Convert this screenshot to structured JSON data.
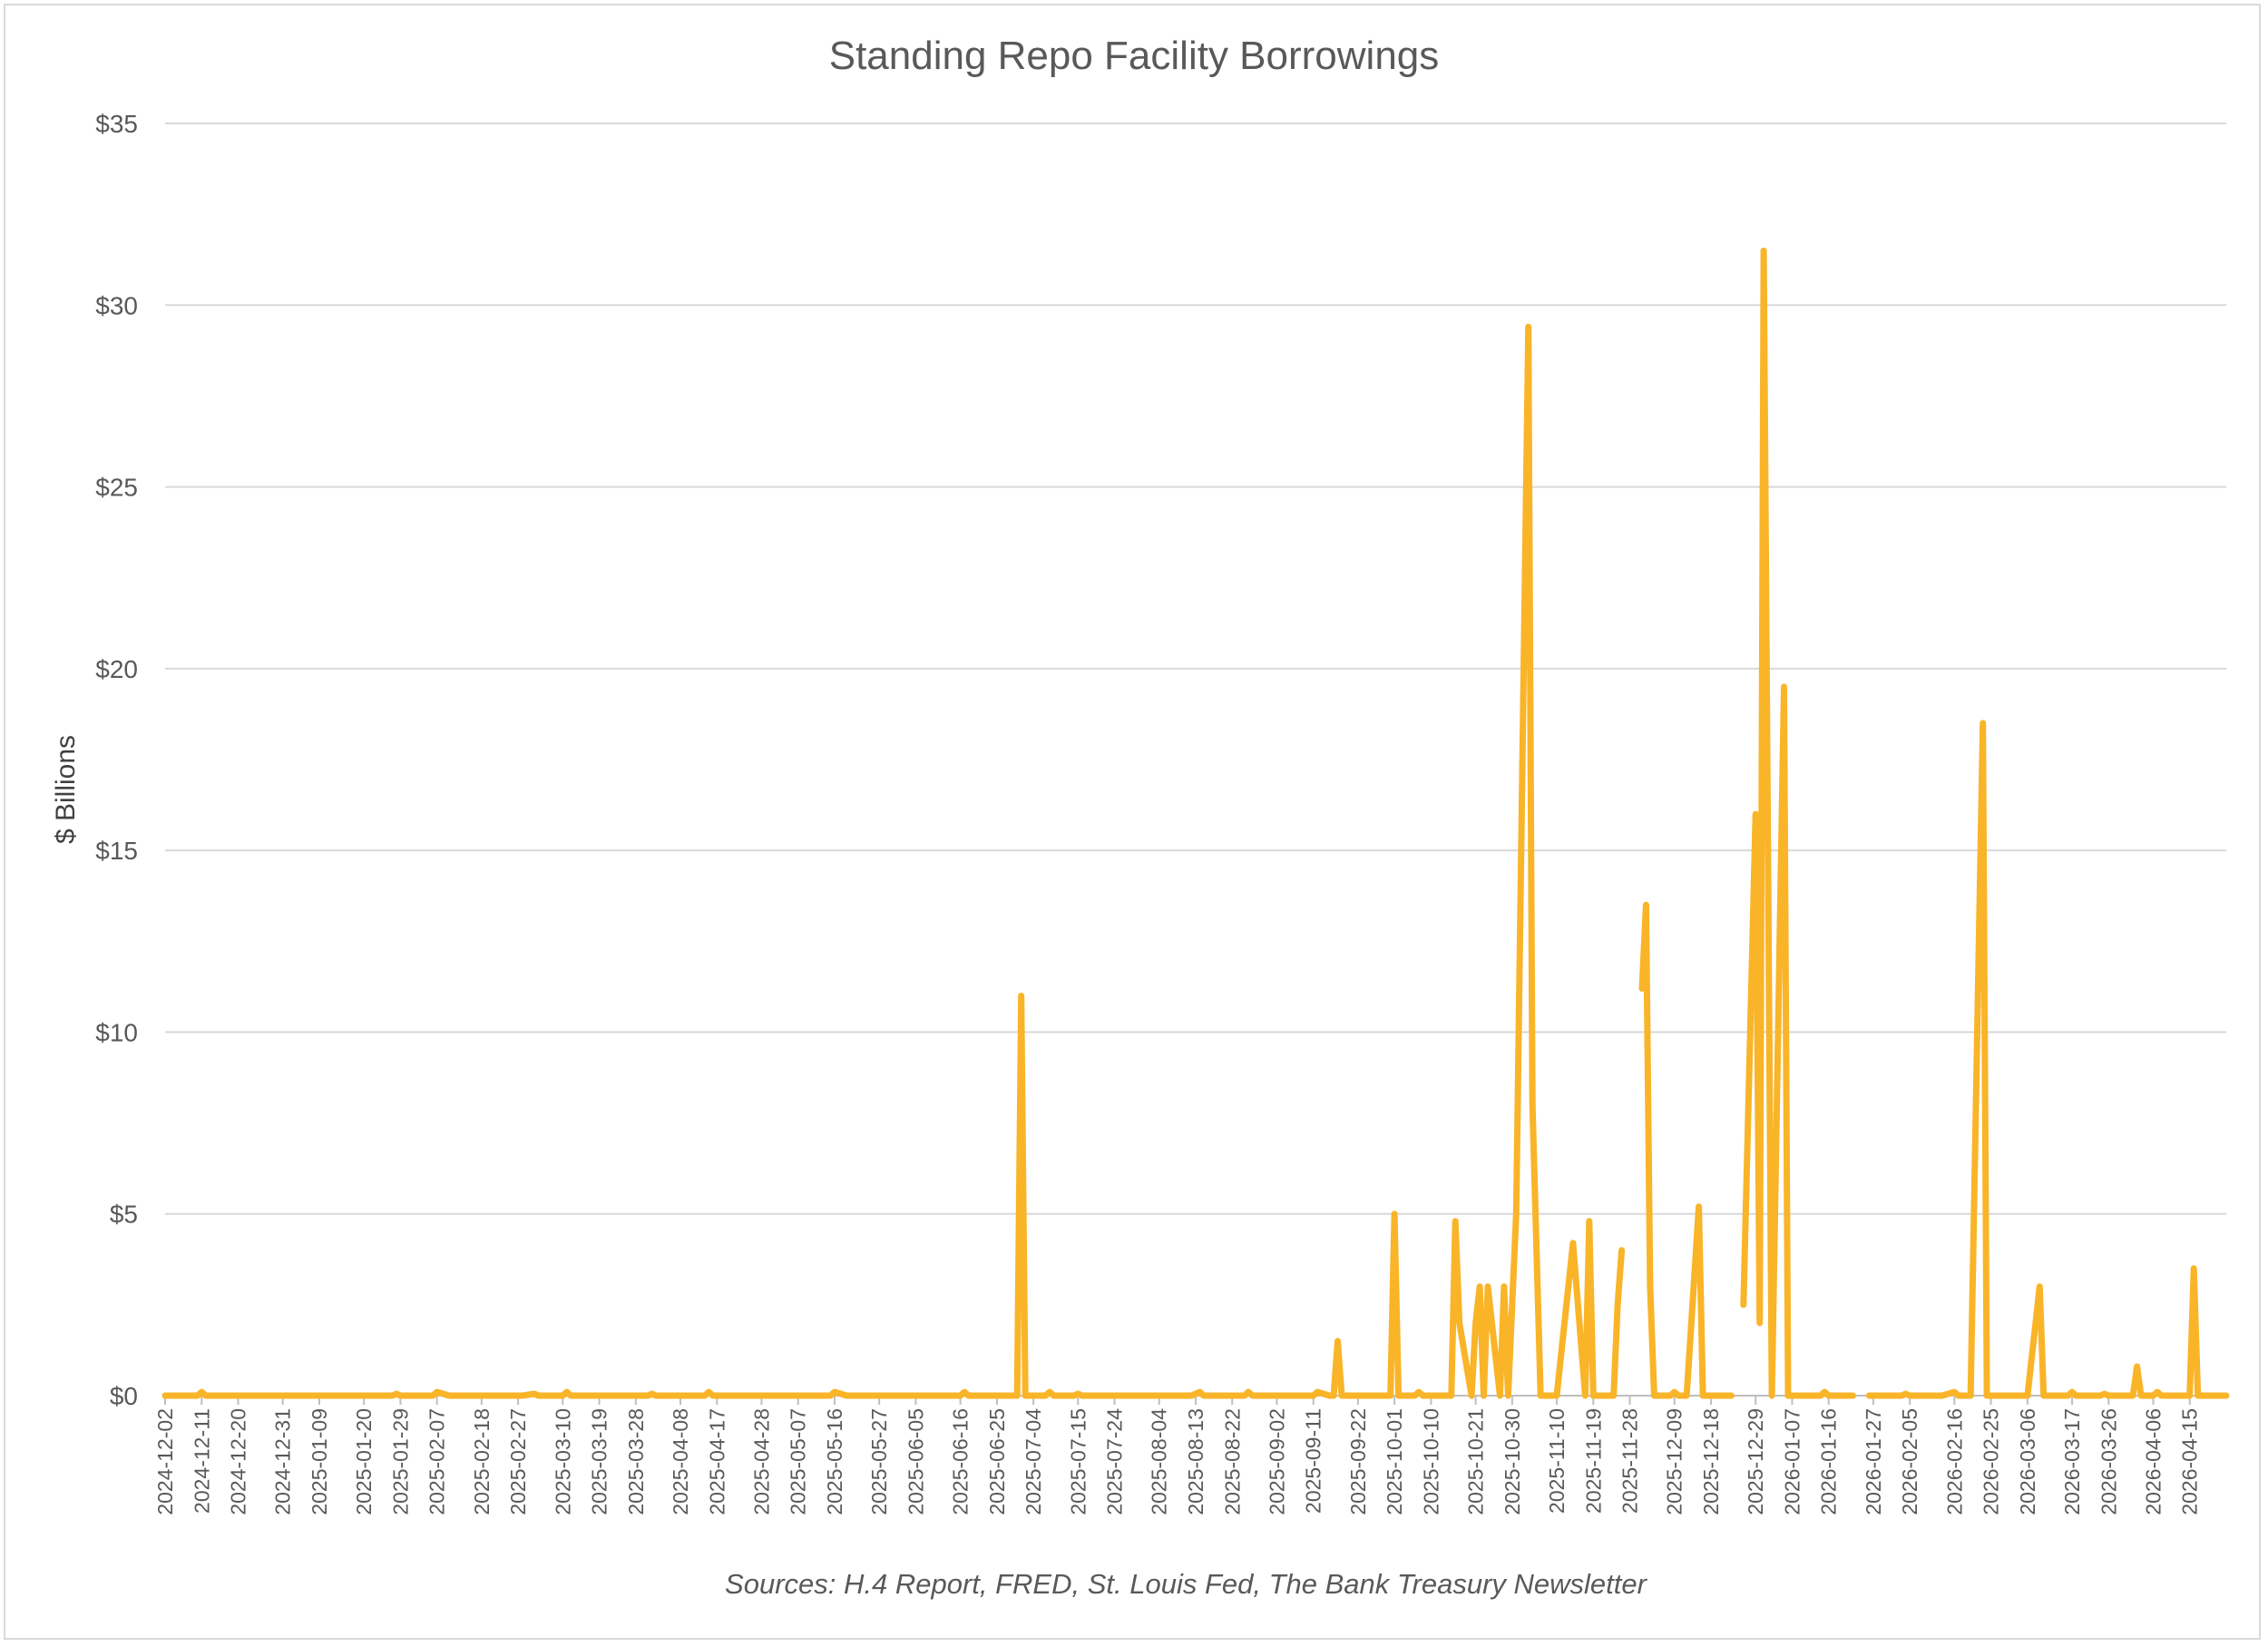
{
  "chart_data": {
    "type": "line",
    "title": "Standing Repo Facility Borrowings",
    "ylabel": "$ Billions",
    "xlabel": "",
    "source": "Sources: H.4 Report, FRED, St. Louis Fed, The Bank Treasury Newsletter",
    "ylim": [
      0,
      35
    ],
    "xlim": [
      "2024-12-02",
      "2026-04-24"
    ],
    "yticks": [
      0,
      5,
      10,
      15,
      20,
      25,
      30,
      35
    ],
    "ytick_labels": [
      "$0",
      "$5",
      "$10",
      "$15",
      "$20",
      "$25",
      "$30",
      "$35"
    ],
    "xtick_labels": [
      "2024-12-02",
      "2024-12-11",
      "2024-12-20",
      "2024-12-31",
      "2025-01-09",
      "2025-01-20",
      "2025-01-29",
      "2025-02-07",
      "2025-02-18",
      "2025-02-27",
      "2025-03-10",
      "2025-03-19",
      "2025-03-28",
      "2025-04-08",
      "2025-04-17",
      "2025-04-28",
      "2025-05-07",
      "2025-05-16",
      "2025-05-27",
      "2025-06-05",
      "2025-06-16",
      "2025-06-25",
      "2025-07-04",
      "2025-07-15",
      "2025-07-24",
      "2025-08-04",
      "2025-08-13",
      "2025-08-22",
      "2025-09-02",
      "2025-09-11",
      "2025-09-22",
      "2025-10-01",
      "2025-10-10",
      "2025-10-21",
      "2025-10-30",
      "2025-11-10",
      "2025-11-19",
      "2025-11-28",
      "2025-12-09",
      "2025-12-18",
      "2025-12-29",
      "2026-01-07",
      "2026-01-16",
      "2026-01-27",
      "2026-02-05",
      "2026-02-16",
      "2026-02-25",
      "2026-03-06",
      "2026-03-17",
      "2026-03-26",
      "2026-04-06",
      "2026-04-15"
    ],
    "grid": true,
    "legend": "none",
    "color": "#f9b428",
    "series": [
      {
        "points": [
          [
            "2024-12-02",
            0
          ],
          [
            "2024-12-10",
            0
          ],
          [
            "2024-12-11",
            0.1
          ],
          [
            "2024-12-12",
            0
          ],
          [
            "2024-12-24",
            0
          ],
          [
            "2024-12-27",
            0
          ],
          [
            "2024-12-31",
            0
          ],
          [
            "2025-01-02",
            0
          ],
          [
            "2025-01-17",
            0
          ],
          [
            "2025-01-21",
            0
          ],
          [
            "2025-01-27",
            0
          ],
          [
            "2025-01-28",
            0.05
          ],
          [
            "2025-01-29",
            0
          ],
          [
            "2025-02-06",
            0
          ],
          [
            "2025-02-07",
            0.1
          ],
          [
            "2025-02-10",
            0
          ],
          [
            "2025-02-14",
            0
          ],
          [
            "2025-02-18",
            0
          ],
          [
            "2025-02-28",
            0
          ],
          [
            "2025-03-03",
            0.05
          ],
          [
            "2025-03-04",
            0
          ],
          [
            "2025-03-10",
            0
          ],
          [
            "2025-03-11",
            0.1
          ],
          [
            "2025-03-12",
            0
          ],
          [
            "2025-03-31",
            0
          ],
          [
            "2025-04-01",
            0.05
          ],
          [
            "2025-04-02",
            0
          ],
          [
            "2025-04-14",
            0
          ],
          [
            "2025-04-15",
            0.1
          ],
          [
            "2025-04-16",
            0
          ],
          [
            "2025-04-25",
            0
          ],
          [
            "2025-04-29",
            0
          ],
          [
            "2025-05-09",
            0
          ],
          [
            "2025-05-12",
            0
          ],
          [
            "2025-05-15",
            0
          ],
          [
            "2025-05-16",
            0.1
          ],
          [
            "2025-05-19",
            0
          ],
          [
            "2025-06-02",
            0
          ],
          [
            "2025-06-04",
            0
          ],
          [
            "2025-06-13",
            0
          ],
          [
            "2025-06-16",
            0
          ],
          [
            "2025-06-17",
            0.1
          ],
          [
            "2025-06-18",
            0
          ],
          [
            "2025-06-24",
            0
          ],
          [
            "2025-06-27",
            0
          ],
          [
            "2025-06-30",
            0
          ],
          [
            "2025-07-01",
            11.0
          ],
          [
            "2025-07-02",
            0
          ],
          [
            "2025-07-03",
            0
          ],
          [
            "2025-07-07",
            0
          ],
          [
            "2025-07-08",
            0.1
          ],
          [
            "2025-07-09",
            0
          ],
          [
            "2025-07-14",
            0
          ],
          [
            "2025-07-15",
            0.05
          ],
          [
            "2025-07-16",
            0
          ],
          [
            "2025-08-08",
            0
          ],
          [
            "2025-08-11",
            0
          ],
          [
            "2025-08-12",
            0
          ],
          [
            "2025-08-14",
            0.1
          ],
          [
            "2025-08-15",
            0
          ],
          [
            "2025-08-22",
            0
          ],
          [
            "2025-08-25",
            0
          ],
          [
            "2025-08-26",
            0.1
          ],
          [
            "2025-08-27",
            0
          ],
          [
            "2025-09-01",
            0
          ],
          [
            "2025-09-04",
            0
          ],
          [
            "2025-09-11",
            0
          ],
          [
            "2025-09-12",
            0.1
          ],
          [
            "2025-09-15",
            0
          ],
          [
            "2025-09-16",
            0
          ],
          [
            "2025-09-17",
            1.5
          ],
          [
            "2025-09-18",
            0
          ],
          [
            "2025-09-30",
            0
          ],
          [
            "2025-10-01",
            5.0
          ],
          [
            "2025-10-02",
            0
          ],
          [
            "2025-10-06",
            0
          ],
          [
            "2025-10-07",
            0.1
          ],
          [
            "2025-10-08",
            0
          ],
          [
            "2025-10-13",
            0
          ],
          [
            "2025-10-14",
            0
          ],
          [
            "2025-10-15",
            0
          ],
          [
            "2025-10-16",
            4.8
          ],
          [
            "2025-10-17",
            2.0
          ],
          [
            "2025-10-20",
            0
          ],
          [
            "2025-10-21",
            2.0
          ],
          [
            "2025-10-22",
            3.0
          ],
          [
            "2025-10-23",
            0
          ],
          [
            "2025-10-24",
            3.0
          ],
          [
            "2025-10-27",
            0
          ],
          [
            "2025-10-28",
            3.0
          ],
          [
            "2025-10-29",
            0
          ],
          [
            "2025-10-31",
            5.0
          ],
          [
            "2025-11-03",
            29.4
          ],
          [
            "2025-11-04",
            8.0
          ],
          [
            "2025-11-06",
            0
          ],
          [
            "2025-11-10",
            0
          ],
          [
            "2025-11-14",
            4.2
          ],
          [
            "2025-11-17",
            0
          ],
          [
            "2025-11-18",
            4.8
          ],
          [
            "2025-11-19",
            0
          ],
          [
            "2025-11-24",
            0
          ],
          [
            "2025-11-25",
            2.5
          ],
          [
            "2025-11-26",
            4.0
          ]
        ]
      },
      {
        "points": [
          [
            "2025-12-01",
            11.2
          ],
          [
            "2025-12-02",
            13.5
          ],
          [
            "2025-12-03",
            3.0
          ],
          [
            "2025-12-04",
            0
          ],
          [
            "2025-12-08",
            0
          ],
          [
            "2025-12-09",
            0.1
          ],
          [
            "2025-12-10",
            0
          ],
          [
            "2025-12-12",
            0
          ],
          [
            "2025-12-15",
            5.2
          ],
          [
            "2025-12-16",
            0
          ],
          [
            "2025-12-23",
            0
          ]
        ]
      },
      {
        "points": [
          [
            "2025-12-26",
            2.5
          ],
          [
            "2025-12-29",
            16.0
          ],
          [
            "2025-12-30",
            2.0
          ],
          [
            "2025-12-31",
            31.5
          ],
          [
            "2026-01-02",
            0
          ],
          [
            "2026-01-05",
            19.5
          ],
          [
            "2026-01-06",
            0
          ],
          [
            "2026-01-14",
            0
          ],
          [
            "2026-01-15",
            0.1
          ],
          [
            "2026-01-16",
            0
          ],
          [
            "2026-01-22",
            0
          ]
        ]
      },
      {
        "points": [
          [
            "2026-01-26",
            0
          ],
          [
            "2026-02-03",
            0
          ],
          [
            "2026-02-04",
            0.05
          ],
          [
            "2026-02-05",
            0
          ],
          [
            "2026-02-13",
            0
          ],
          [
            "2026-02-16",
            0.1
          ],
          [
            "2026-02-17",
            0
          ],
          [
            "2026-02-19",
            0
          ],
          [
            "2026-02-20",
            0
          ],
          [
            "2026-02-23",
            18.5
          ],
          [
            "2026-02-24",
            0
          ],
          [
            "2026-03-06",
            0
          ],
          [
            "2026-03-09",
            3.0
          ],
          [
            "2026-03-10",
            0
          ],
          [
            "2026-03-16",
            0
          ],
          [
            "2026-03-17",
            0.1
          ],
          [
            "2026-03-18",
            0
          ],
          [
            "2026-03-24",
            0
          ],
          [
            "2026-03-25",
            0.05
          ],
          [
            "2026-03-26",
            0
          ],
          [
            "2026-04-01",
            0
          ],
          [
            "2026-04-02",
            0.8
          ],
          [
            "2026-04-03",
            0
          ],
          [
            "2026-04-06",
            0
          ],
          [
            "2026-04-07",
            0.1
          ],
          [
            "2026-04-08",
            0
          ],
          [
            "2026-04-15",
            0
          ],
          [
            "2026-04-16",
            3.5
          ],
          [
            "2026-04-17",
            0
          ],
          [
            "2026-04-24",
            0
          ]
        ]
      }
    ]
  }
}
